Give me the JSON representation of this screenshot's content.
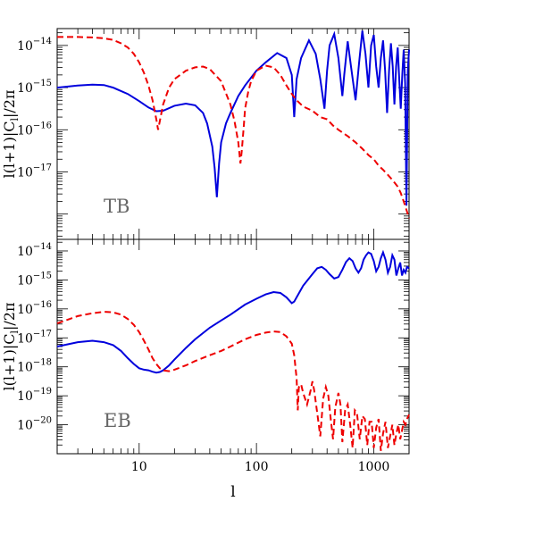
{
  "chart_data": [
    {
      "type": "line",
      "panel_label": "TB",
      "ylabel": "l(l+1)|C_l|/2π",
      "xlabel": "",
      "x_scale": "log",
      "y_scale": "log",
      "xlim": [
        2,
        2000
      ],
      "ylim_log10": [
        -18.6,
        -13.6
      ],
      "x_ticks": [
        {
          "value": 10,
          "label": "10"
        },
        {
          "value": 100,
          "label": "100"
        },
        {
          "value": 1000,
          "label": "1000"
        }
      ],
      "y_ticks": [
        {
          "exp": -17,
          "label": "10",
          "sup": "−17"
        },
        {
          "exp": -16,
          "label": "10",
          "sup": "−16"
        },
        {
          "exp": -15,
          "label": "10",
          "sup": "−15"
        },
        {
          "exp": -14,
          "label": "10",
          "sup": "−14"
        }
      ],
      "series": [
        {
          "style": "solid",
          "color": "#0000dd",
          "x": [
            2,
            3,
            4,
            5,
            6,
            8,
            10,
            12,
            14,
            16,
            20,
            25,
            30,
            35,
            38,
            42,
            44,
            46,
            48,
            50,
            55,
            60,
            70,
            80,
            100,
            120,
            150,
            180,
            200,
            210,
            220,
            240,
            280,
            320,
            350,
            380,
            400,
            420,
            460,
            500,
            540,
            560,
            600,
            640,
            700,
            750,
            800,
            850,
            900,
            950,
            1000,
            1050,
            1100,
            1150,
            1200,
            1250,
            1300,
            1350,
            1400,
            1450,
            1500,
            1550,
            1600,
            1650,
            1700,
            1750,
            1800,
            1850,
            1900,
            1950,
            2000
          ],
          "y_log10": [
            -15.0,
            -14.95,
            -14.93,
            -14.94,
            -15.0,
            -15.15,
            -15.32,
            -15.47,
            -15.56,
            -15.55,
            -15.43,
            -15.38,
            -15.42,
            -15.6,
            -15.85,
            -16.4,
            -16.9,
            -17.6,
            -16.8,
            -16.3,
            -15.85,
            -15.6,
            -15.2,
            -14.95,
            -14.6,
            -14.4,
            -14.18,
            -14.3,
            -14.7,
            -15.7,
            -14.8,
            -14.3,
            -13.88,
            -14.2,
            -14.8,
            -15.5,
            -14.6,
            -14.0,
            -13.73,
            -14.3,
            -15.2,
            -14.7,
            -13.9,
            -14.5,
            -15.3,
            -14.4,
            -13.65,
            -14.2,
            -15.0,
            -14.0,
            -13.75,
            -14.5,
            -15.0,
            -14.3,
            -13.88,
            -14.6,
            -15.6,
            -14.6,
            -13.95,
            -14.5,
            -15.4,
            -14.5,
            -14.05,
            -14.8,
            -15.5,
            -14.7,
            -14.1,
            -14.9,
            -17.8,
            -14.6,
            -14.1
          ]
        },
        {
          "style": "dashed",
          "color": "#ee0000",
          "x": [
            2,
            3,
            4,
            5,
            6,
            7,
            8,
            9,
            10,
            11,
            12,
            13,
            14,
            14.5,
            15,
            16,
            18,
            20,
            25,
            30,
            35,
            40,
            50,
            60,
            65,
            70,
            73,
            75,
            78,
            80,
            85,
            90,
            100,
            120,
            140,
            160,
            180,
            200,
            220,
            250,
            300,
            350,
            400,
            450,
            500,
            600,
            700,
            800,
            900,
            1000,
            1100,
            1200,
            1300,
            1400,
            1500,
            1600,
            1700,
            1800,
            1900,
            2000
          ],
          "y_log10": [
            -13.8,
            -13.8,
            -13.81,
            -13.83,
            -13.87,
            -13.95,
            -14.05,
            -14.2,
            -14.4,
            -14.65,
            -14.95,
            -15.3,
            -15.75,
            -16.0,
            -15.8,
            -15.4,
            -15.0,
            -14.8,
            -14.6,
            -14.52,
            -14.5,
            -14.56,
            -14.85,
            -15.4,
            -15.8,
            -16.3,
            -16.8,
            -16.5,
            -15.9,
            -15.5,
            -15.1,
            -14.85,
            -14.6,
            -14.48,
            -14.52,
            -14.7,
            -14.95,
            -15.15,
            -15.3,
            -15.45,
            -15.55,
            -15.7,
            -15.75,
            -15.9,
            -16.0,
            -16.15,
            -16.3,
            -16.45,
            -16.6,
            -16.7,
            -16.85,
            -16.95,
            -17.05,
            -17.15,
            -17.25,
            -17.35,
            -17.5,
            -17.7,
            -17.9,
            -18.1
          ]
        }
      ]
    },
    {
      "type": "line",
      "panel_label": "EB",
      "ylabel": "l(l+1)|C_l|/2π",
      "xlabel": "l",
      "x_scale": "log",
      "y_scale": "log",
      "xlim": [
        2,
        2000
      ],
      "ylim_log10": [
        -21.0,
        -13.6
      ],
      "x_ticks": [
        {
          "value": 10,
          "label": "10"
        },
        {
          "value": 100,
          "label": "100"
        },
        {
          "value": 1000,
          "label": "1000"
        }
      ],
      "y_ticks": [
        {
          "exp": -20,
          "label": "10",
          "sup": "−20"
        },
        {
          "exp": -19,
          "label": "10",
          "sup": "−19"
        },
        {
          "exp": -18,
          "label": "10",
          "sup": "−18"
        },
        {
          "exp": -17,
          "label": "10",
          "sup": "−17"
        },
        {
          "exp": -16,
          "label": "10",
          "sup": "−16"
        },
        {
          "exp": -15,
          "label": "10",
          "sup": "−15"
        },
        {
          "exp": -14,
          "label": "10",
          "sup": "−14"
        }
      ],
      "series": [
        {
          "style": "solid",
          "color": "#0000dd",
          "x": [
            2,
            3,
            4,
            5,
            6,
            7,
            8,
            9,
            10,
            11,
            12,
            13,
            14,
            15,
            16,
            18,
            20,
            25,
            30,
            40,
            50,
            60,
            80,
            100,
            120,
            140,
            160,
            180,
            200,
            210,
            220,
            250,
            280,
            300,
            330,
            360,
            390,
            420,
            460,
            500,
            540,
            580,
            620,
            660,
            700,
            740,
            780,
            820,
            860,
            900,
            950,
            1000,
            1050,
            1100,
            1150,
            1200,
            1260,
            1320,
            1380,
            1440,
            1500,
            1560,
            1620,
            1680,
            1740,
            1800,
            1860,
            1920,
            2000
          ],
          "y_log10": [
            -17.3,
            -17.15,
            -17.1,
            -17.15,
            -17.25,
            -17.45,
            -17.7,
            -17.9,
            -18.05,
            -18.1,
            -18.12,
            -18.17,
            -18.2,
            -18.18,
            -18.12,
            -17.95,
            -17.75,
            -17.35,
            -17.05,
            -16.65,
            -16.4,
            -16.2,
            -15.85,
            -15.65,
            -15.5,
            -15.42,
            -15.45,
            -15.6,
            -15.8,
            -15.75,
            -15.6,
            -15.2,
            -14.95,
            -14.8,
            -14.6,
            -14.55,
            -14.65,
            -14.8,
            -14.95,
            -14.9,
            -14.65,
            -14.38,
            -14.25,
            -14.35,
            -14.6,
            -14.75,
            -14.6,
            -14.3,
            -14.15,
            -14.05,
            -14.1,
            -14.35,
            -14.7,
            -14.55,
            -14.25,
            -14.05,
            -14.3,
            -14.75,
            -14.55,
            -14.15,
            -14.3,
            -14.85,
            -14.6,
            -14.4,
            -14.85,
            -14.65,
            -14.75,
            -14.55,
            -14.6
          ]
        },
        {
          "style": "dashed",
          "color": "#ee0000",
          "x": [
            2,
            3,
            4,
            5,
            6,
            7,
            8,
            9,
            10,
            11,
            12,
            13,
            14,
            15,
            16,
            18,
            20,
            25,
            30,
            40,
            50,
            60,
            80,
            100,
            120,
            140,
            160,
            180,
            200,
            210,
            220,
            225,
            230,
            240,
            250,
            270,
            290,
            300,
            310,
            330,
            350,
            370,
            390,
            410,
            430,
            450,
            470,
            500,
            520,
            540,
            570,
            600,
            630,
            660,
            690,
            720,
            760,
            800,
            840,
            880,
            920,
            960,
            1000,
            1050,
            1100,
            1150,
            1200,
            1260,
            1320,
            1380,
            1440,
            1500,
            1560,
            1620,
            1680,
            1740,
            1800,
            1860,
            1920,
            2000
          ],
          "y_log10": [
            -16.5,
            -16.25,
            -16.15,
            -16.1,
            -16.12,
            -16.2,
            -16.35,
            -16.55,
            -16.8,
            -17.1,
            -17.4,
            -17.7,
            -17.9,
            -18.05,
            -18.12,
            -18.15,
            -18.1,
            -17.95,
            -17.8,
            -17.6,
            -17.45,
            -17.3,
            -17.05,
            -16.9,
            -16.82,
            -16.78,
            -16.8,
            -16.95,
            -17.2,
            -17.6,
            -18.4,
            -19.5,
            -18.7,
            -18.6,
            -18.9,
            -19.3,
            -18.8,
            -18.5,
            -18.8,
            -19.6,
            -20.4,
            -19.1,
            -18.7,
            -19.0,
            -19.8,
            -20.5,
            -19.4,
            -18.9,
            -19.3,
            -20.6,
            -19.5,
            -19.3,
            -20.0,
            -20.8,
            -19.5,
            -19.6,
            -20.5,
            -19.7,
            -19.8,
            -20.7,
            -19.9,
            -19.9,
            -20.8,
            -20.1,
            -19.8,
            -20.9,
            -20.3,
            -19.9,
            -20.8,
            -20.4,
            -20.0,
            -20.7,
            -20.3,
            -20.0,
            -20.5,
            -20.2,
            -19.9,
            -20.0,
            -19.8,
            -19.65
          ]
        }
      ]
    }
  ]
}
